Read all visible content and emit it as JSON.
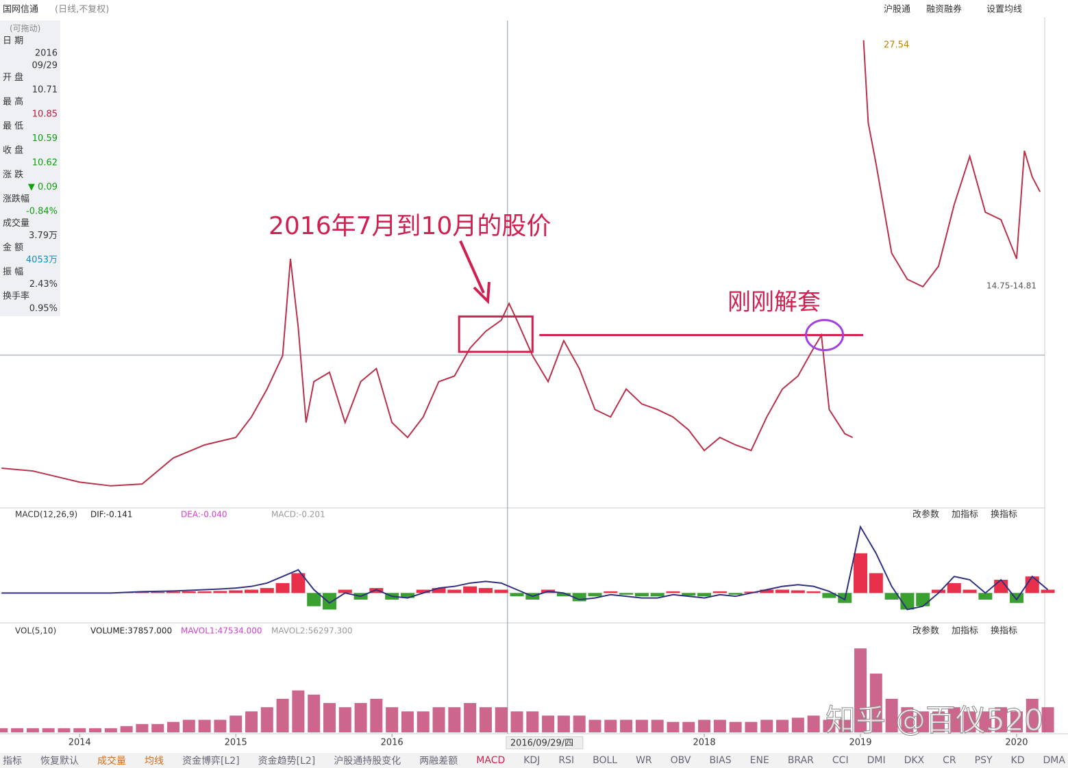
{
  "header": {
    "title": "国网信通",
    "subtitle": "(日线,不复权)",
    "links": [
      "沪股通",
      "融资融券",
      "设置均线"
    ]
  },
  "info_panel": {
    "title": "(可拖动)",
    "items": [
      {
        "label": "日 期",
        "values": [
          "2016",
          "09/29"
        ],
        "color": "#333333"
      },
      {
        "label": "开 盘",
        "values": [
          "10.71"
        ],
        "color": "#333333"
      },
      {
        "label": "最 高",
        "values": [
          "10.85"
        ],
        "color": "#d0103a"
      },
      {
        "label": "最 低",
        "values": [
          "10.59"
        ],
        "color": "#10a010"
      },
      {
        "label": "收 盘",
        "values": [
          "10.62"
        ],
        "color": "#10a010"
      },
      {
        "label": "涨 跌",
        "values": [
          "▼ 0.09"
        ],
        "color": "#10a010"
      },
      {
        "label": "涨跌幅",
        "values": [
          "-0.84%"
        ],
        "color": "#10a010"
      },
      {
        "label": "成交量",
        "values": [
          "3.79万"
        ],
        "color": "#333333"
      },
      {
        "label": "金 额",
        "values": [
          "4053万"
        ],
        "color": "#1090c0"
      },
      {
        "label": "振 幅",
        "values": [
          "2.43%"
        ],
        "color": "#333333"
      },
      {
        "label": "换手率",
        "values": [
          "0.95%"
        ],
        "color": "#333333"
      }
    ]
  },
  "chart_data": [
    {
      "type": "line",
      "name": "price",
      "x": [
        2013.5,
        2013.7,
        2013.9,
        2014.0,
        2014.2,
        2014.4,
        2014.6,
        2014.8,
        2015.0,
        2015.1,
        2015.2,
        2015.3,
        2015.35,
        2015.4,
        2015.45,
        2015.5,
        2015.6,
        2015.7,
        2015.8,
        2015.9,
        2016.0,
        2016.1,
        2016.2,
        2016.3,
        2016.4,
        2016.5,
        2016.6,
        2016.7,
        2016.75,
        2016.8,
        2016.9,
        2017.0,
        2017.1,
        2017.2,
        2017.3,
        2017.4,
        2017.5,
        2017.6,
        2017.7,
        2017.8,
        2017.9,
        2018.0,
        2018.1,
        2018.2,
        2018.3,
        2018.4,
        2018.5,
        2018.6,
        2018.7,
        2018.75,
        2018.8,
        2018.9,
        2018.95,
        2019.0,
        2019.02,
        2019.05,
        2019.1,
        2019.2,
        2019.3,
        2019.4,
        2019.5,
        2019.6,
        2019.7,
        2019.8,
        2019.9,
        2020.0,
        2020.05,
        2020.1,
        2020.15
      ],
      "values": [
        4.55,
        4.4,
        4.0,
        3.8,
        3.6,
        3.7,
        5.1,
        5.8,
        6.2,
        7.3,
        8.8,
        10.6,
        15.8,
        12.1,
        7.0,
        9.2,
        9.7,
        7.0,
        9.2,
        9.9,
        7.0,
        6.2,
        7.3,
        9.2,
        9.5,
        11.0,
        11.9,
        12.5,
        13.4,
        12.5,
        10.6,
        9.2,
        11.4,
        9.9,
        7.7,
        7.3,
        8.8,
        8.0,
        7.7,
        7.3,
        6.6,
        5.5,
        6.2,
        5.8,
        5.5,
        7.3,
        8.8,
        9.5,
        11.0,
        11.7,
        7.7,
        6.4,
        6.2,
        null,
        27.54,
        23.1,
        20.9,
        16.1,
        14.7,
        14.3,
        15.4,
        18.7,
        21.3,
        18.3,
        17.9,
        15.8,
        21.6,
        20.2,
        19.4
      ],
      "color": "#b8304a",
      "xlim": [
        2013.49,
        2020.18
      ],
      "ylim": [
        2.6,
        28.6
      ],
      "xticks": [
        2014,
        2015,
        2016,
        2018,
        2019,
        2020
      ],
      "annotations": [
        {
          "text": "2016年7月到10月的股价",
          "color": "#d02050"
        },
        {
          "text": "刚刚解套",
          "color": "#d02050"
        },
        {
          "text": "27.54",
          "color": "#c08000"
        },
        {
          "text": "14.75-14.81",
          "color": "#555555"
        }
      ],
      "crosshair": {
        "x": 2016.74,
        "y": 10.62,
        "label": "2016/09/29/四"
      },
      "level_line": 11.7,
      "highlight_box": {
        "x": [
          2016.43,
          2016.9
        ],
        "y": [
          10.8,
          12.7
        ]
      },
      "highlight_circle": {
        "x": 2018.77,
        "y": 11.7
      }
    },
    {
      "type": "macd",
      "name": "MACD(12,26,9)",
      "legend": [
        {
          "text": "DIF:-0.141",
          "color": "#222222"
        },
        {
          "text": "DEA:-0.040",
          "color": "#d040d0"
        },
        {
          "text": "MACD:-0.201",
          "color": "#999999"
        }
      ],
      "buttons": [
        "改参数",
        "加指标",
        "换指标"
      ],
      "x": [
        2013.5,
        2013.6,
        2013.7,
        2013.8,
        2013.9,
        2014.0,
        2014.1,
        2014.2,
        2014.3,
        2014.4,
        2014.5,
        2014.6,
        2014.7,
        2014.8,
        2014.9,
        2015.0,
        2015.1,
        2015.2,
        2015.3,
        2015.4,
        2015.5,
        2015.6,
        2015.7,
        2015.8,
        2015.9,
        2016.0,
        2016.1,
        2016.2,
        2016.3,
        2016.4,
        2016.5,
        2016.6,
        2016.7,
        2016.8,
        2016.9,
        2017.0,
        2017.1,
        2017.2,
        2017.3,
        2017.4,
        2017.5,
        2017.6,
        2017.7,
        2017.8,
        2017.9,
        2018.0,
        2018.1,
        2018.2,
        2018.3,
        2018.4,
        2018.5,
        2018.6,
        2018.7,
        2018.8,
        2018.9,
        2019.0,
        2019.1,
        2019.2,
        2019.3,
        2019.4,
        2019.5,
        2019.6,
        2019.7,
        2019.8,
        2019.9,
        2020.0,
        2020.1,
        2020.2
      ],
      "series": [
        {
          "name": "MACD",
          "color": "#e8304a",
          "color2": "#3aa030",
          "values": [
            0,
            0,
            0,
            0,
            0,
            0,
            0,
            0,
            0.02,
            0.03,
            0.03,
            0.04,
            0.05,
            0.05,
            0.06,
            0.08,
            0.1,
            0.15,
            0.3,
            0.6,
            -0.4,
            -0.5,
            0.1,
            -0.2,
            0.15,
            -0.2,
            -0.15,
            0.1,
            0.15,
            0.1,
            0.2,
            0.15,
            0.1,
            -0.1,
            -0.2,
            0.1,
            -0.1,
            -0.25,
            -0.1,
            0.05,
            -0.05,
            -0.1,
            -0.1,
            0.05,
            -0.08,
            -0.1,
            0.05,
            -0.05,
            0.04,
            0.1,
            0.1,
            0.08,
            0.05,
            -0.15,
            -0.3,
            1.2,
            0.6,
            -0.2,
            -0.5,
            -0.4,
            0.1,
            0.3,
            0.1,
            -0.2,
            0.4,
            -0.3,
            0.5,
            0.1
          ]
        },
        {
          "name": "DIF",
          "color": "#303080",
          "values": [
            0,
            0,
            0,
            0,
            0,
            0,
            0,
            0,
            0.02,
            0.04,
            0.05,
            0.06,
            0.08,
            0.1,
            0.12,
            0.15,
            0.2,
            0.3,
            0.5,
            0.7,
            0.1,
            -0.3,
            0,
            -0.1,
            0.1,
            -0.1,
            -0.15,
            0,
            0.15,
            0.2,
            0.3,
            0.35,
            0.3,
            0.1,
            -0.1,
            0.05,
            0,
            -0.2,
            -0.15,
            -0.05,
            -0.1,
            -0.15,
            -0.15,
            -0.05,
            -0.1,
            -0.15,
            -0.05,
            -0.1,
            0,
            0.1,
            0.2,
            0.25,
            0.2,
            0.05,
            -0.2,
            2.0,
            1.2,
            0.2,
            -0.5,
            -0.4,
            0,
            0.5,
            0.4,
            0,
            0.4,
            -0.2,
            0.5,
            0.1
          ]
        }
      ],
      "xlim": [
        2013.49,
        2020.18
      ],
      "ylim": [
        -0.8,
        2.2
      ]
    },
    {
      "type": "volume",
      "name": "VOL(5,10)",
      "legend": [
        {
          "text": "VOLUME:37857.000",
          "color": "#222222"
        },
        {
          "text": "MAVOL1:47534.000",
          "color": "#d040d0"
        },
        {
          "text": "MAVOL2:56297.300",
          "color": "#999999"
        }
      ],
      "buttons": [
        "改参数",
        "加指标",
        "换指标"
      ],
      "x": [
        2013.5,
        2013.6,
        2013.7,
        2013.8,
        2013.9,
        2014.0,
        2014.1,
        2014.2,
        2014.3,
        2014.4,
        2014.5,
        2014.6,
        2014.7,
        2014.8,
        2014.9,
        2015.0,
        2015.1,
        2015.2,
        2015.3,
        2015.4,
        2015.5,
        2015.6,
        2015.7,
        2015.8,
        2015.9,
        2016.0,
        2016.1,
        2016.2,
        2016.3,
        2016.4,
        2016.5,
        2016.6,
        2016.7,
        2016.8,
        2016.9,
        2017.0,
        2017.1,
        2017.2,
        2017.3,
        2017.4,
        2017.5,
        2017.6,
        2017.7,
        2017.8,
        2017.9,
        2018.0,
        2018.1,
        2018.2,
        2018.3,
        2018.4,
        2018.5,
        2018.6,
        2018.7,
        2018.8,
        2018.9,
        2019.0,
        2019.1,
        2019.2,
        2019.3,
        2019.4,
        2019.5,
        2019.6,
        2019.7,
        2019.8,
        2019.9,
        2020.0,
        2020.1,
        2020.2
      ],
      "values": [
        1,
        1,
        1,
        1,
        1,
        1,
        1,
        1,
        1.5,
        2,
        2,
        2.5,
        3,
        3,
        3,
        4,
        5,
        6,
        8,
        10,
        9,
        7,
        6,
        7,
        8,
        6,
        5,
        5,
        6,
        6,
        7,
        6,
        6,
        5,
        5,
        4,
        4,
        4,
        3,
        3,
        3,
        3,
        3,
        2.5,
        2.5,
        3,
        3,
        2.5,
        2.5,
        3,
        3,
        3.5,
        4,
        3,
        3,
        20,
        14,
        8,
        6,
        5,
        5,
        6,
        5,
        5,
        6,
        5,
        8,
        6
      ],
      "color": "#c04070",
      "xlim": [
        2013.49,
        2020.18
      ],
      "ylim": [
        0,
        22
      ]
    }
  ],
  "watermark": "知乎 @百仪520",
  "tabs": [
    "指标",
    "恢复默认",
    "成交量",
    "均线",
    "资金博弈[L2]",
    "资金趋势[L2]",
    "沪股通持股变化",
    "两融差额",
    "MACD",
    "KDJ",
    "RSI",
    "BOLL",
    "WR",
    "OBV",
    "BIAS",
    "ENE",
    "BRAR",
    "CCI",
    "DMI",
    "DKX",
    "CR",
    "PSY",
    "KD",
    "DMA"
  ]
}
